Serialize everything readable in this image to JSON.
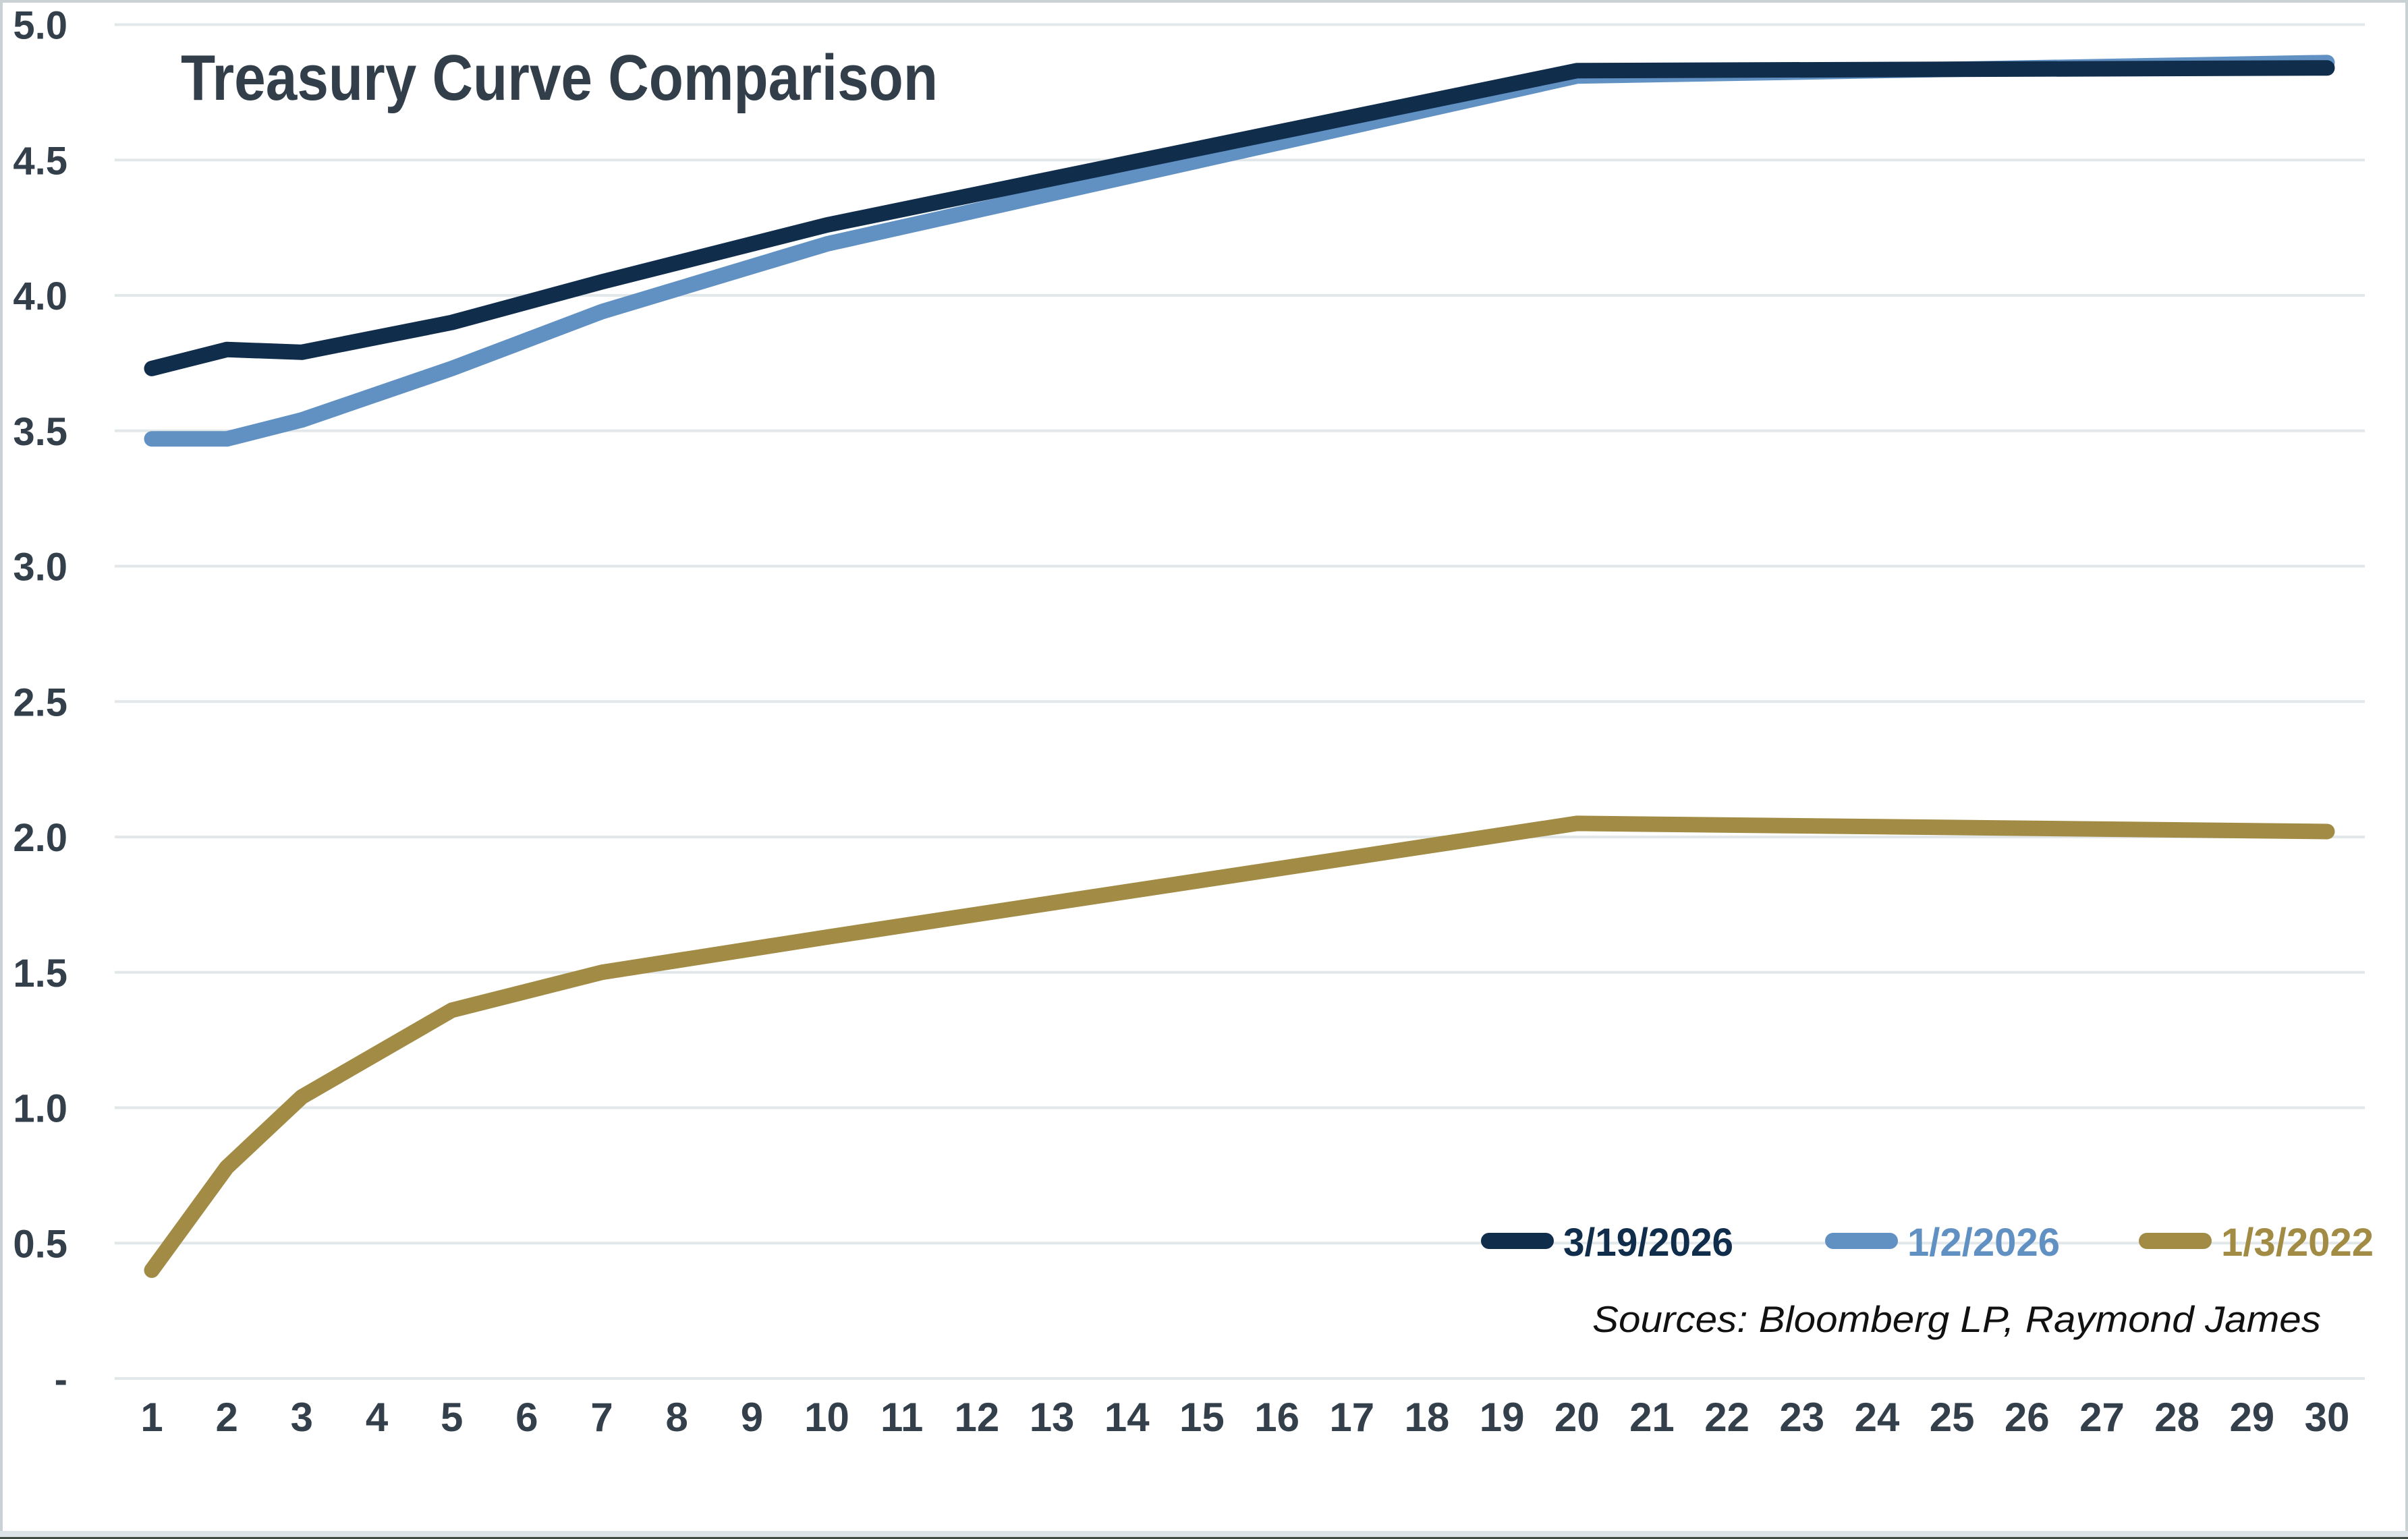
{
  "title": "Treasury Curve Comparison",
  "ui_colors": {
    "background": "#ffffff",
    "grid_line": "#e2e7ea",
    "axis_text": "#333f4a",
    "title_text": "#323f4a",
    "source_text": "#111111",
    "outer_border": "#c9d1d5",
    "bottom_strip": "#dce3e6",
    "bottom_edge_line": "#3e4c44"
  },
  "chart_data": {
    "type": "line",
    "title": "Treasury Curve Comparison",
    "source_note": "Sources: Bloomberg LP, Raymond James",
    "grid": "horizontal",
    "legend_position": "bottom-right",
    "x_axis": {
      "range": [
        1,
        30
      ],
      "ticks": [
        "1",
        "2",
        "3",
        "4",
        "5",
        "6",
        "7",
        "8",
        "9",
        "10",
        "11",
        "12",
        "13",
        "14",
        "15",
        "16",
        "17",
        "18",
        "19",
        "20",
        "21",
        "22",
        "23",
        "24",
        "25",
        "26",
        "27",
        "28",
        "29",
        "30"
      ]
    },
    "y_axis": {
      "range": [
        0,
        5
      ],
      "ticks": [
        {
          "label": "5.0",
          "value": 5.0
        },
        {
          "label": "4.5",
          "value": 4.5
        },
        {
          "label": "4.0",
          "value": 4.0
        },
        {
          "label": "3.5",
          "value": 3.5
        },
        {
          "label": "3.0",
          "value": 3.0
        },
        {
          "label": "2.5",
          "value": 2.5
        },
        {
          "label": "2.0",
          "value": 2.0
        },
        {
          "label": "1.5",
          "value": 1.5
        },
        {
          "label": "1.0",
          "value": 1.0
        },
        {
          "label": "0.5",
          "value": 0.5
        },
        {
          "label": "-",
          "value": 0.0
        }
      ]
    },
    "tenors_years": [
      1,
      2,
      3,
      5,
      7,
      10,
      20,
      30
    ],
    "series": [
      {
        "name": "3/19/2026",
        "color": "#102d4c",
        "values": [
          3.73,
          3.8,
          3.79,
          3.9,
          4.05,
          4.26,
          4.83,
          4.84
        ]
      },
      {
        "name": "1/2/2026",
        "color": "#6191c2",
        "values": [
          3.47,
          3.47,
          3.54,
          3.73,
          3.94,
          4.19,
          4.81,
          4.86
        ]
      },
      {
        "name": "1/3/2022",
        "color": "#a28c45",
        "values": [
          0.4,
          0.78,
          1.04,
          1.36,
          1.5,
          1.63,
          2.05,
          2.02
        ]
      }
    ]
  }
}
